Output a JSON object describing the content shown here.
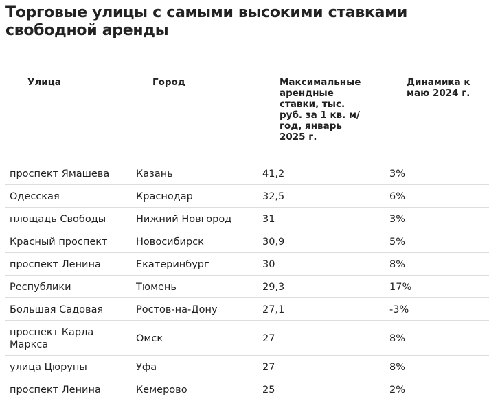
{
  "title": "Торговые улицы с самыми высокими ставками свободной аренды",
  "table": {
    "headers": [
      "Улица",
      "Город",
      "Максимальные арендные ставки, тыс. руб. за 1 кв. м/ год, январь 2025 г.",
      "Динамика к маю 2024 г."
    ],
    "rows": [
      [
        "проспект Ямашева",
        "Казань",
        "41,2",
        "3%"
      ],
      [
        "Одесская",
        "Краснодар",
        "32,5",
        "6%"
      ],
      [
        "площадь Свободы",
        "Нижний Новгород",
        "31",
        "3%"
      ],
      [
        "Красный проспект",
        "Новосибирск",
        "30,9",
        "5%"
      ],
      [
        "проспект Ленина",
        "Екатеринбург",
        "30",
        "8%"
      ],
      [
        "Республики",
        "Тюмень",
        "29,3",
        "17%"
      ],
      [
        "Большая Садовая",
        "Ростов-на-Дону",
        "27,1",
        "-3%"
      ],
      [
        "проспект Карла Маркса",
        "Омск",
        "27",
        "8%"
      ],
      [
        "улица Цюрупы",
        "Уфа",
        "27",
        "8%"
      ],
      [
        "проспект Ленина",
        "Кемерово",
        "25",
        "2%"
      ]
    ]
  }
}
